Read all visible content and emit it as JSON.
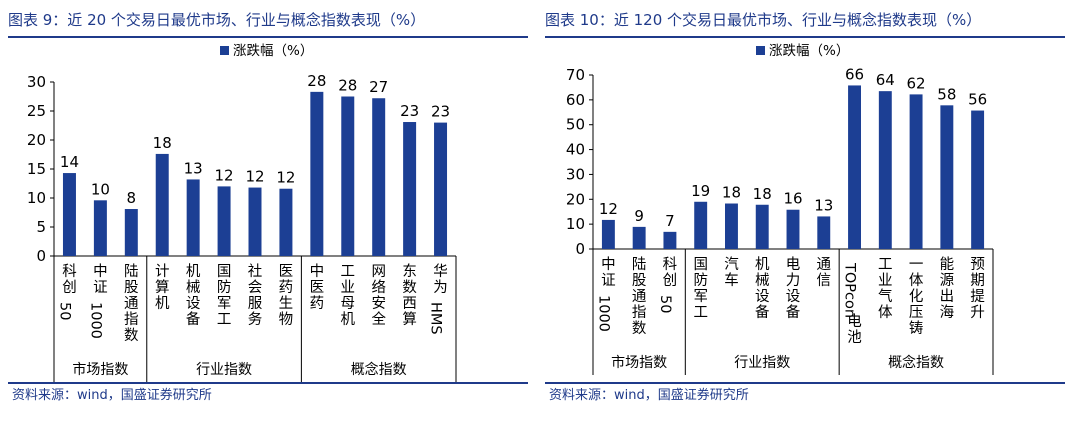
{
  "source_label": "资料来源：wind，国盛证券研究所",
  "colors": {
    "bar": "#1c3f94",
    "title": "#1f3a8a",
    "axis": "#000000"
  },
  "chart_data": [
    {
      "type": "bar",
      "title": "图表 9：近 20 个交易日最优市场、行业与概念指数表现（%）",
      "legend": "涨跌幅（%）",
      "legend_position": "top-center",
      "grid": false,
      "ylim": [
        0,
        30
      ],
      "yticks": [
        0,
        5,
        10,
        15,
        20,
        25,
        30
      ],
      "categories": [
        "科创50",
        "中证1000",
        "陆股通指数",
        "计算机",
        "机械设备",
        "国防军工",
        "社会服务",
        "医药生物",
        "中医药",
        "工业母机",
        "网络安全",
        "东数西算",
        "华为HMS"
      ],
      "values": [
        14.3,
        9.6,
        8.1,
        17.6,
        13.2,
        12.0,
        11.8,
        11.6,
        28.3,
        27.5,
        27.2,
        23.1,
        23.0
      ],
      "data_labels": [
        "14",
        "10",
        "8",
        "18",
        "13",
        "12",
        "12",
        "12",
        "28",
        "28",
        "27",
        "23",
        "23"
      ],
      "groups": [
        {
          "label": "市场指数",
          "count": 3
        },
        {
          "label": "行业指数",
          "count": 5
        },
        {
          "label": "概念指数",
          "count": 5
        }
      ]
    },
    {
      "type": "bar",
      "title": "图表 10：近 120 个交易日最优市场、行业与概念指数表现（%）",
      "legend": "涨跌幅（%）",
      "legend_position": "top-center",
      "grid": false,
      "ylim": [
        0,
        70
      ],
      "yticks": [
        0,
        10,
        20,
        30,
        40,
        50,
        60,
        70
      ],
      "categories": [
        "中证1000",
        "陆股通指数",
        "科创50",
        "国防军工",
        "汽车",
        "机械设备",
        "电力设备",
        "通信",
        "TOPcon电池",
        "工业气体",
        "一体化压铸",
        "能源出海",
        "预期提升"
      ],
      "values": [
        11.7,
        8.9,
        6.9,
        19.0,
        18.3,
        17.8,
        15.8,
        13.1,
        65.8,
        63.5,
        62.2,
        57.8,
        55.7
      ],
      "data_labels": [
        "12",
        "9",
        "7",
        "19",
        "18",
        "18",
        "16",
        "13",
        "66",
        "64",
        "62",
        "58",
        "56"
      ],
      "groups": [
        {
          "label": "市场指数",
          "count": 3
        },
        {
          "label": "行业指数",
          "count": 5
        },
        {
          "label": "概念指数",
          "count": 5
        }
      ]
    }
  ]
}
